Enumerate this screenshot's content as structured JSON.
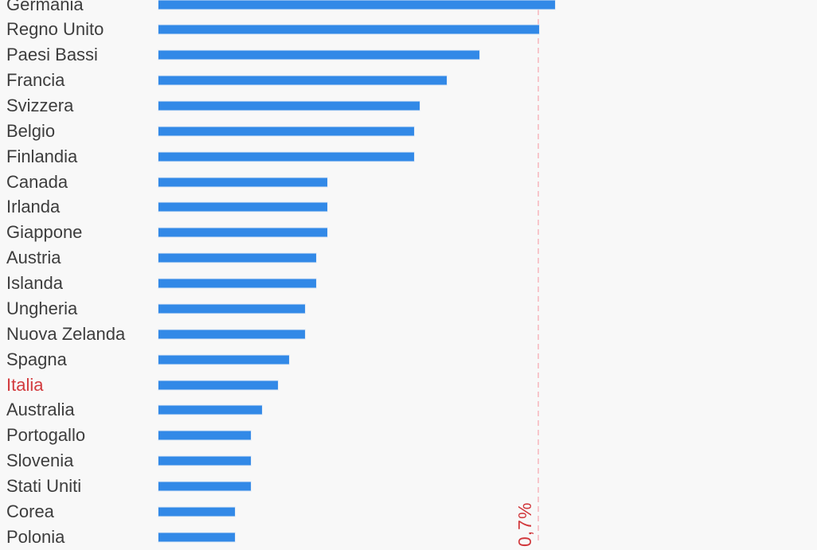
{
  "chart_data": {
    "type": "bar",
    "orientation": "horizontal",
    "title": "",
    "xlabel": "",
    "ylabel": "",
    "unit": "%",
    "categories": [
      "Germania",
      "Regno Unito",
      "Paesi Bassi",
      "Francia",
      "Svizzera",
      "Belgio",
      "Finlandia",
      "Canada",
      "Irlanda",
      "Giappone",
      "Austria",
      "Islanda",
      "Ungheria",
      "Nuova Zelanda",
      "Spagna",
      "Italia",
      "Australia",
      "Portogallo",
      "Slovenia",
      "Stati Uniti",
      "Corea",
      "Polonia"
    ],
    "values": [
      0.73,
      0.7,
      0.59,
      0.53,
      0.48,
      0.47,
      0.47,
      0.31,
      0.31,
      0.31,
      0.29,
      0.29,
      0.27,
      0.27,
      0.24,
      0.22,
      0.19,
      0.17,
      0.17,
      0.17,
      0.14,
      0.14
    ],
    "highlight_category": "Italia",
    "reference_line": {
      "value": 0.7,
      "label": "0,7%"
    },
    "xlim": [
      0,
      1.21
    ],
    "grid": false,
    "legend": "none",
    "colors": {
      "bar": "#3289e7",
      "label": "#3d3d3d",
      "highlight": "#d23b3e",
      "reference_line": "#f7c6cb",
      "reference_label": "#d1383c",
      "background": "#f8f8f8"
    }
  }
}
